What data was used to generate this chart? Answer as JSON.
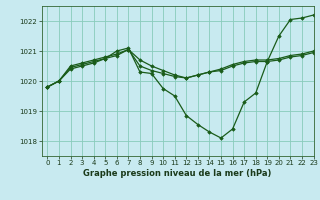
{
  "title": "Graphe pression niveau de la mer (hPa)",
  "background_color": "#c8eaf0",
  "grid_color": "#88ccbb",
  "line_color": "#1a5c1a",
  "marker_color": "#1a5c1a",
  "xlim": [
    -0.5,
    23
  ],
  "ylim": [
    1017.5,
    1022.5
  ],
  "yticks": [
    1018,
    1019,
    1020,
    1021,
    1022
  ],
  "xticks": [
    0,
    1,
    2,
    3,
    4,
    5,
    6,
    7,
    8,
    9,
    10,
    11,
    12,
    13,
    14,
    15,
    16,
    17,
    18,
    19,
    20,
    21,
    22,
    23
  ],
  "series_a": [
    1019.8,
    1020.0,
    1020.4,
    1020.5,
    1020.6,
    1020.75,
    1021.0,
    1021.1,
    1020.3,
    1020.25,
    1019.75,
    1019.5,
    1018.85,
    1018.55,
    1018.3,
    1018.1,
    1018.4,
    1019.3,
    1019.6,
    1020.65,
    1021.5,
    1022.05,
    1022.1,
    1022.2
  ],
  "series_b": [
    1019.8,
    1020.0,
    1020.45,
    1020.55,
    1020.65,
    1020.75,
    1020.85,
    1021.05,
    1020.5,
    1020.35,
    1020.25,
    1020.15,
    1020.1,
    1020.2,
    1020.3,
    1020.35,
    1020.5,
    1020.6,
    1020.65,
    1020.65,
    1020.7,
    1020.8,
    1020.85,
    1020.95
  ],
  "series_c": [
    1019.8,
    1020.0,
    1020.5,
    1020.6,
    1020.7,
    1020.8,
    1020.9,
    1021.05,
    1020.7,
    1020.5,
    1020.35,
    1020.2,
    1020.1,
    1020.2,
    1020.3,
    1020.4,
    1020.55,
    1020.65,
    1020.7,
    1020.7,
    1020.75,
    1020.85,
    1020.9,
    1021.0
  ],
  "title_fontsize": 6.0,
  "tick_fontsize": 5.0
}
